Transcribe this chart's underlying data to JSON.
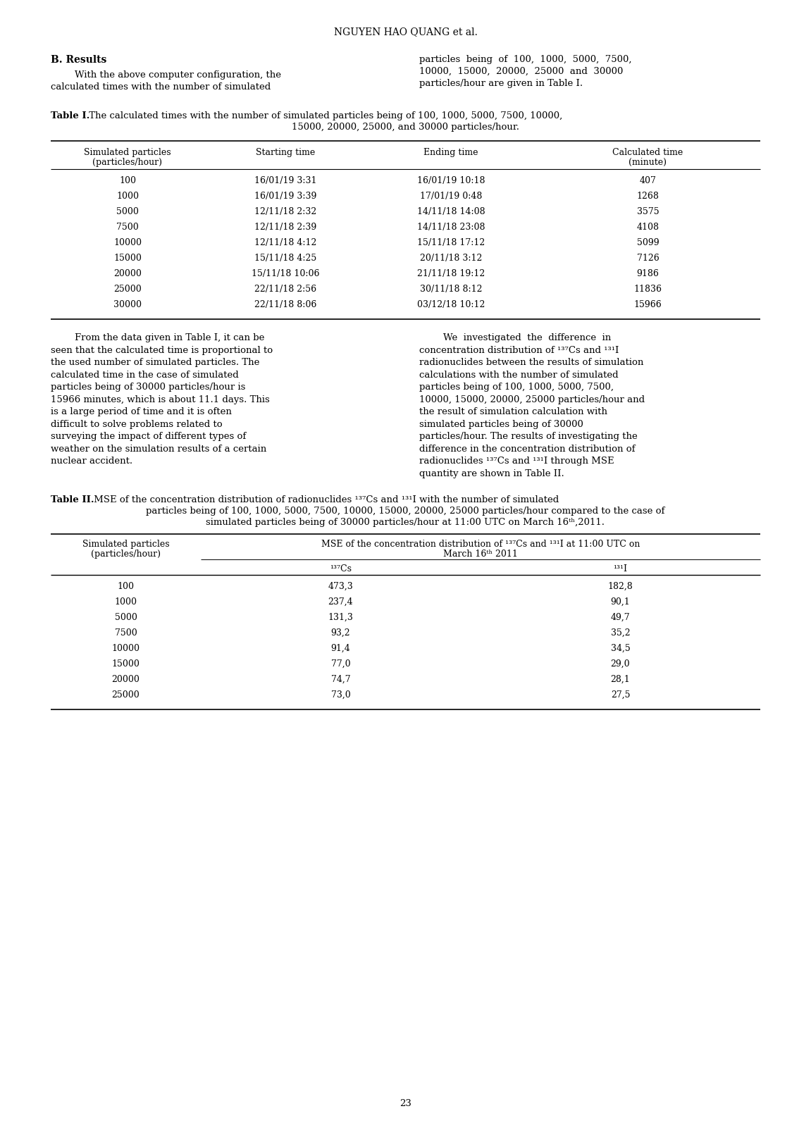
{
  "page_header": "NGUYEN HAO QUANG et al.",
  "section_b_title": "B. Results",
  "table1_headers": [
    "Simulated particles\n(particles/hour)",
    "Starting time",
    "Ending time",
    "Calculated time\n(minute)"
  ],
  "table1_data": [
    [
      "100",
      "16/01/19 3:31",
      "16/01/19 10:18",
      "407"
    ],
    [
      "1000",
      "16/01/19 3:39",
      "17/01/19 0:48",
      "1268"
    ],
    [
      "5000",
      "12/11/18 2:32",
      "14/11/18 14:08",
      "3575"
    ],
    [
      "7500",
      "12/11/18 2:39",
      "14/11/18 23:08",
      "4108"
    ],
    [
      "10000",
      "12/11/18 4:12",
      "15/11/18 17:12",
      "5099"
    ],
    [
      "15000",
      "15/11/18 4:25",
      "20/11/18 3:12",
      "7126"
    ],
    [
      "20000",
      "15/11/18 10:06",
      "21/11/18 19:12",
      "9186"
    ],
    [
      "25000",
      "22/11/18 2:56",
      "30/11/18 8:12",
      "11836"
    ],
    [
      "30000",
      "22/11/18 8:06",
      "03/12/18 10:12",
      "15966"
    ]
  ],
  "table2_data": [
    [
      "100",
      "473,3",
      "182,8"
    ],
    [
      "1000",
      "237,4",
      "90,1"
    ],
    [
      "5000",
      "131,3",
      "49,7"
    ],
    [
      "7500",
      "93,2",
      "35,2"
    ],
    [
      "10000",
      "91,4",
      "34,5"
    ],
    [
      "15000",
      "77,0",
      "29,0"
    ],
    [
      "20000",
      "74,7",
      "28,1"
    ],
    [
      "25000",
      "73,0",
      "27,5"
    ]
  ],
  "page_number": "23",
  "background_color": "#ffffff",
  "text_color": "#000000",
  "font_size_body": 9.5
}
